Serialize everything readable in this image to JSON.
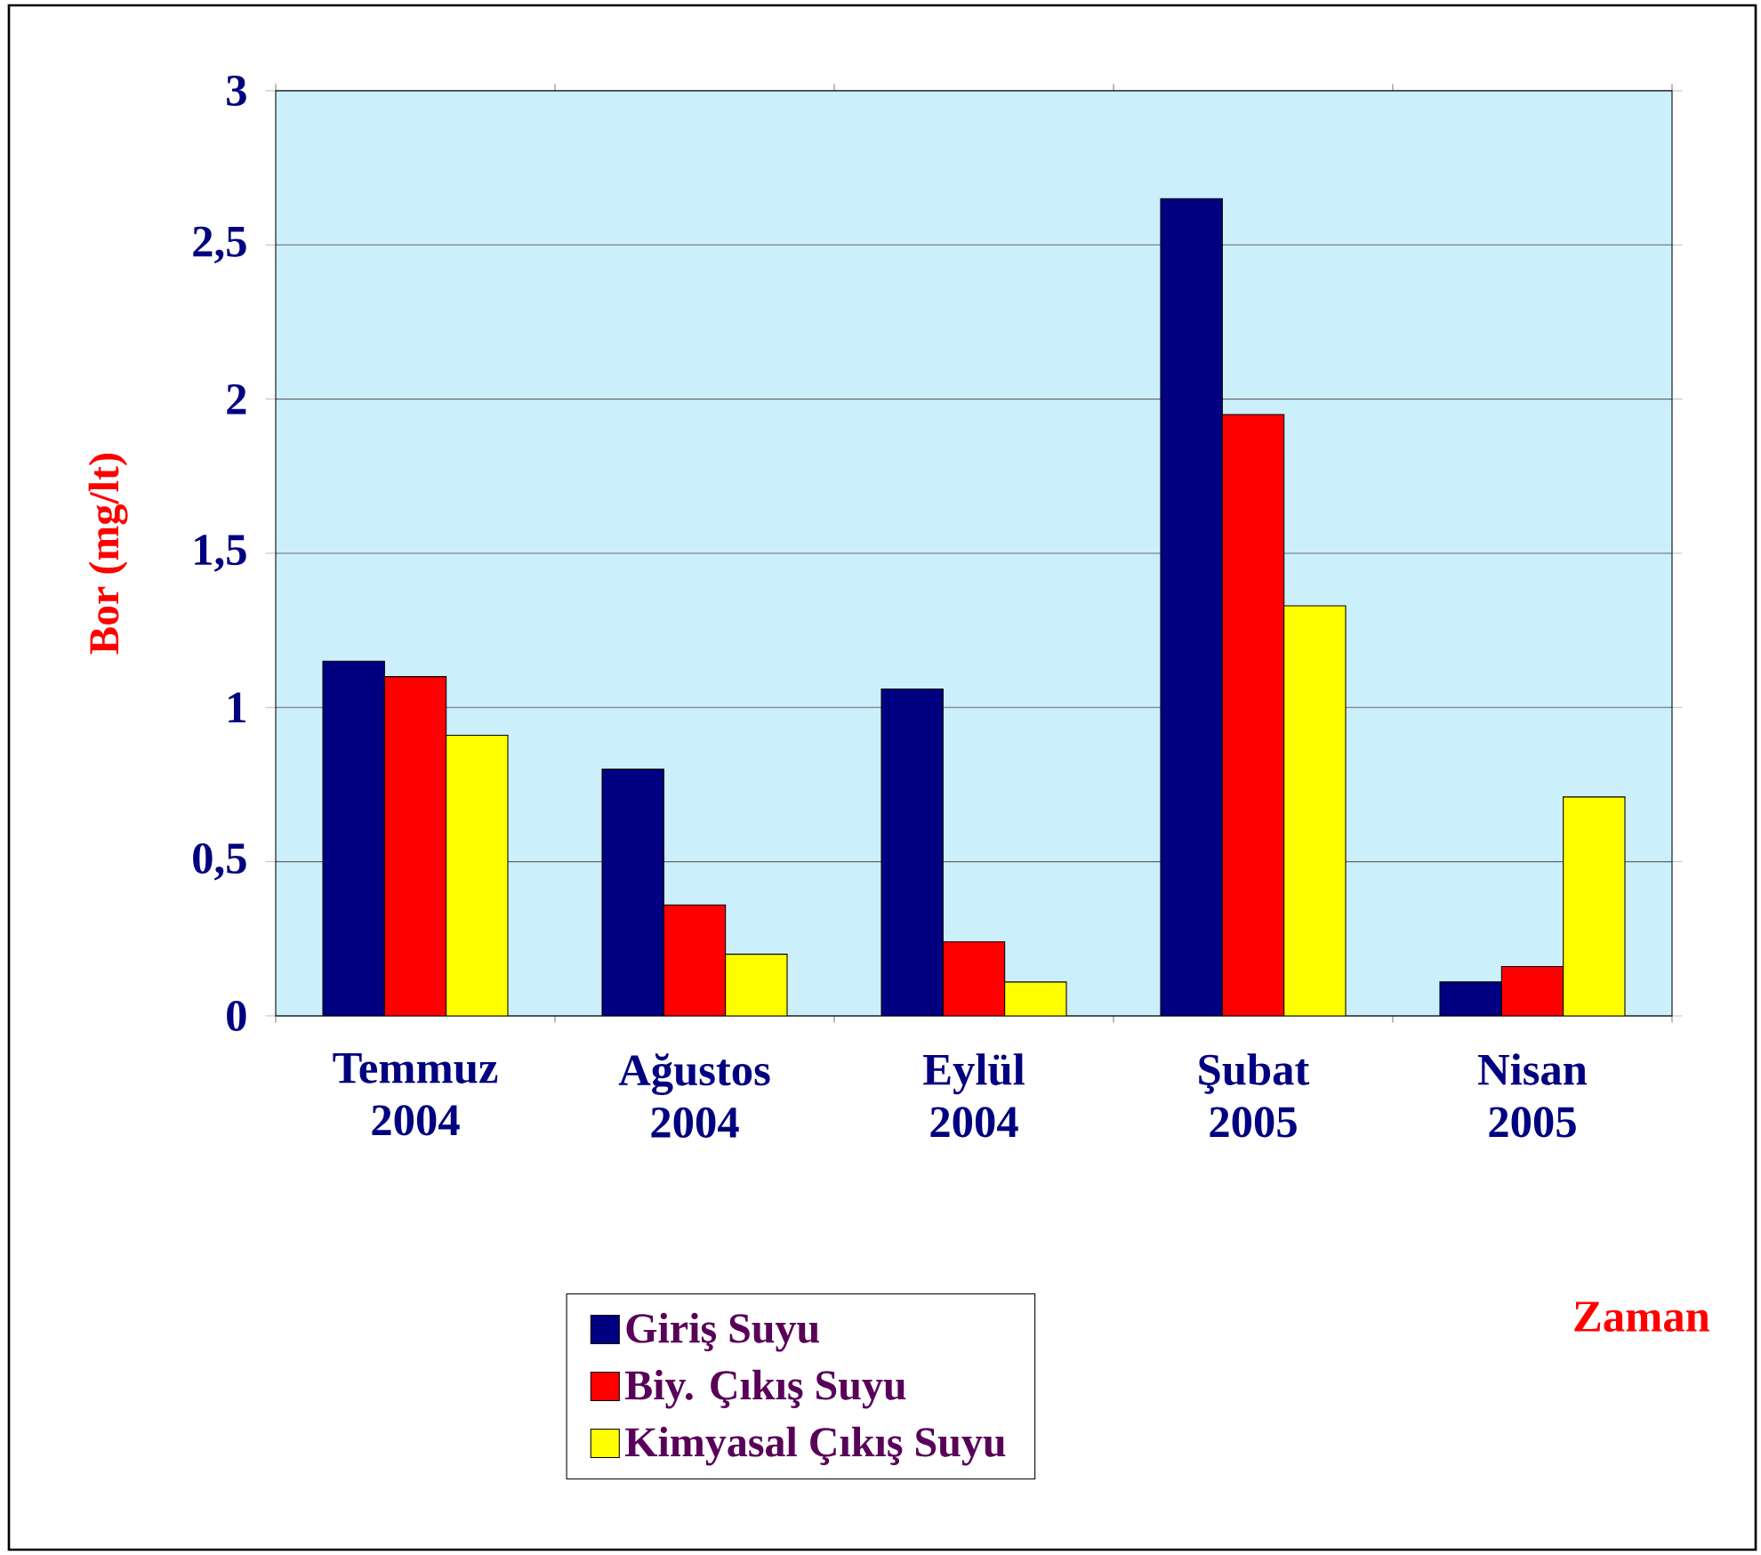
{
  "chart_data": {
    "type": "bar",
    "categories": [
      "Temmuz 2004",
      "Ağustos 2004",
      "Eylül 2004",
      "Şubat 2005",
      "Nisan 2005"
    ],
    "series": [
      {
        "name": "Giriş Suyu",
        "color": "#000080",
        "values": [
          1.15,
          0.8,
          1.06,
          2.65,
          0.11
        ]
      },
      {
        "name": "Biy. Çıkış Suyu",
        "color": "#ff0000",
        "values": [
          1.1,
          0.36,
          0.24,
          1.95,
          0.16
        ]
      },
      {
        "name": "Kimyasal Çıkış Suyu",
        "color": "#ffff00",
        "values": [
          0.91,
          0.2,
          0.11,
          1.33,
          0.71
        ]
      }
    ],
    "xlabel": "Zaman",
    "ylabel": "Bor (mg/lt)",
    "ylim": [
      0,
      3
    ],
    "yticks": [
      0,
      {
        "value": 0.5,
        "label": "0,5"
      },
      1,
      {
        "value": 1.5,
        "label": "1,5"
      },
      2,
      {
        "value": 2.5,
        "label": "2,5"
      },
      3
    ],
    "grid": "y",
    "legend": "bottom"
  }
}
